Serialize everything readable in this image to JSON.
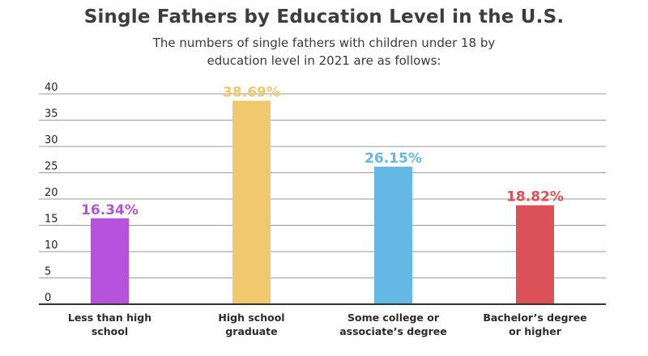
{
  "chart_data": {
    "type": "bar",
    "title": "Single Fathers by Education Level in the U.S.",
    "subtitle": "The numbers of single fathers with children under 18 by education level in 2021 are as follows:",
    "categories": [
      [
        "Less than high",
        "school"
      ],
      [
        "High school",
        "graduate"
      ],
      [
        "Some college or",
        "associate’s degree"
      ],
      [
        "Bachelor’s degree",
        "or higher"
      ]
    ],
    "values": [
      16.34,
      38.69,
      26.15,
      18.82
    ],
    "data_labels": [
      "16.34%",
      "38.69%",
      "26.15%",
      "18.82%"
    ],
    "colors": [
      "#b653dc",
      "#f0c96e",
      "#63b8e6",
      "#dc5158"
    ],
    "ylim": [
      0,
      40
    ],
    "yticks": [
      "0",
      "5",
      "10",
      "15",
      "20",
      "25",
      "30",
      "35",
      "40"
    ],
    "grid": true,
    "legend": "none"
  }
}
